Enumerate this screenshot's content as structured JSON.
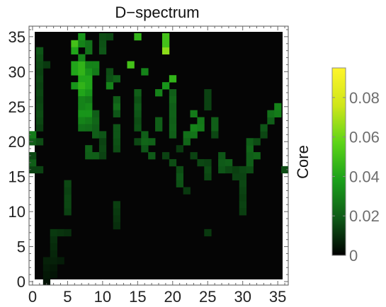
{
  "chart_data": {
    "type": "heatmap",
    "title": "D−spectrum",
    "xlabel": "",
    "ylabel": "",
    "xlim": [
      -0.5,
      36.5
    ],
    "ylim": [
      -0.5,
      36.5
    ],
    "x_ticks": [
      0,
      5,
      10,
      15,
      20,
      25,
      30,
      35
    ],
    "y_ticks": [
      0,
      5,
      10,
      15,
      20,
      25,
      30,
      35
    ],
    "grid": false,
    "background_color": "#050505",
    "colorbar": {
      "label": "Core",
      "min": 0,
      "max": 0.095,
      "ticks": [
        0,
        0.02,
        0.04,
        0.06,
        0.08
      ],
      "tick_labels": [
        "0",
        "0.02",
        "0.04",
        "0.06",
        "0.08"
      ],
      "colors": [
        "#000000",
        "#0f5a18",
        "#1aa01a",
        "#5cd418",
        "#cfe61a",
        "#fff52a"
      ]
    },
    "cells": [
      [
        2,
        0,
        0.004
      ],
      [
        2,
        1,
        0.005
      ],
      [
        3,
        1,
        0.004
      ],
      [
        2,
        2,
        0.006
      ],
      [
        3,
        2,
        0.005
      ],
      [
        2,
        3,
        0.007
      ],
      [
        3,
        3,
        0.007
      ],
      [
        4,
        3,
        0.006
      ],
      [
        3,
        4,
        0.008
      ],
      [
        3,
        5,
        0.009
      ],
      [
        3,
        6,
        0.01
      ],
      [
        3,
        7,
        0.012
      ],
      [
        4,
        7,
        0.011
      ],
      [
        5,
        7,
        0.01
      ],
      [
        5,
        10,
        0.014
      ],
      [
        5,
        11,
        0.015
      ],
      [
        5,
        12,
        0.015
      ],
      [
        5,
        13,
        0.014
      ],
      [
        5,
        14,
        0.015
      ],
      [
        12,
        8,
        0.01
      ],
      [
        12,
        9,
        0.011
      ],
      [
        12,
        10,
        0.012
      ],
      [
        12,
        11,
        0.013
      ],
      [
        25,
        7,
        0.012
      ],
      [
        0,
        16,
        0.014
      ],
      [
        0,
        17,
        0.02
      ],
      [
        0,
        18,
        0.015
      ],
      [
        0,
        20,
        0.02
      ],
      [
        0,
        21,
        0.028
      ],
      [
        1,
        20,
        0.016
      ],
      [
        1,
        16,
        0.014
      ],
      [
        1,
        22,
        0.013
      ],
      [
        1,
        23,
        0.015
      ],
      [
        1,
        24,
        0.016
      ],
      [
        1,
        25,
        0.015
      ],
      [
        1,
        26,
        0.014
      ],
      [
        1,
        27,
        0.015
      ],
      [
        1,
        28,
        0.014
      ],
      [
        1,
        29,
        0.015
      ],
      [
        1,
        30,
        0.014
      ],
      [
        1,
        31,
        0.015
      ],
      [
        1,
        32,
        0.016
      ],
      [
        1,
        33,
        0.018
      ],
      [
        2,
        31,
        0.012
      ],
      [
        6,
        28,
        0.035
      ],
      [
        6,
        30,
        0.04
      ],
      [
        6,
        31,
        0.04
      ],
      [
        6,
        34,
        0.05
      ],
      [
        6,
        33,
        0.04
      ],
      [
        7,
        29,
        0.04
      ],
      [
        7,
        28,
        0.045
      ],
      [
        7,
        27,
        0.04
      ],
      [
        7,
        30,
        0.045
      ],
      [
        7,
        31,
        0.045
      ],
      [
        7,
        32,
        0.03
      ],
      [
        7,
        35,
        0.035
      ],
      [
        7,
        34,
        0.03
      ],
      [
        8,
        27,
        0.035
      ],
      [
        8,
        28,
        0.04
      ],
      [
        8,
        29,
        0.04
      ],
      [
        8,
        30,
        0.035
      ],
      [
        8,
        31,
        0.03
      ],
      [
        8,
        33,
        0.025
      ],
      [
        8,
        34,
        0.025
      ],
      [
        9,
        31,
        0.03
      ],
      [
        9,
        30,
        0.028
      ],
      [
        7,
        26,
        0.03
      ],
      [
        8,
        26,
        0.028
      ],
      [
        7,
        25,
        0.03
      ],
      [
        8,
        25,
        0.032
      ],
      [
        7,
        24,
        0.035
      ],
      [
        8,
        24,
        0.035
      ],
      [
        7,
        23,
        0.03
      ],
      [
        8,
        23,
        0.028
      ],
      [
        7,
        22,
        0.025
      ],
      [
        8,
        22,
        0.024
      ],
      [
        9,
        21,
        0.02
      ],
      [
        10,
        21,
        0.018
      ],
      [
        9,
        22,
        0.02
      ],
      [
        9,
        23,
        0.022
      ],
      [
        9,
        24,
        0.02
      ],
      [
        10,
        33,
        0.018
      ],
      [
        10,
        34,
        0.017
      ],
      [
        10,
        35,
        0.016
      ],
      [
        11,
        35,
        0.015
      ],
      [
        11,
        30,
        0.016
      ],
      [
        11,
        29,
        0.017
      ],
      [
        12,
        29,
        0.02
      ],
      [
        11,
        28,
        0.03
      ],
      [
        12,
        25,
        0.024
      ],
      [
        12,
        26,
        0.02
      ],
      [
        12,
        24,
        0.018
      ],
      [
        8,
        18,
        0.02
      ],
      [
        8,
        19,
        0.021
      ],
      [
        9,
        18,
        0.02
      ],
      [
        10,
        20,
        0.014
      ],
      [
        10,
        19,
        0.015
      ],
      [
        10,
        18,
        0.014
      ],
      [
        12,
        19,
        0.016
      ],
      [
        12,
        20,
        0.017
      ],
      [
        12,
        21,
        0.018
      ],
      [
        12,
        22,
        0.018
      ],
      [
        15,
        22,
        0.017
      ],
      [
        15,
        23,
        0.016
      ],
      [
        15,
        24,
        0.018
      ],
      [
        15,
        25,
        0.019
      ],
      [
        15,
        26,
        0.017
      ],
      [
        15,
        27,
        0.02
      ],
      [
        15,
        20,
        0.015
      ],
      [
        16,
        21,
        0.02
      ],
      [
        16,
        20,
        0.022
      ],
      [
        16,
        19,
        0.018
      ],
      [
        17,
        20,
        0.021
      ],
      [
        17,
        18,
        0.019
      ],
      [
        15,
        35,
        0.045
      ],
      [
        16,
        30,
        0.03
      ],
      [
        14,
        31,
        0.05
      ],
      [
        19,
        35,
        0.05
      ],
      [
        19,
        33,
        0.065
      ],
      [
        19,
        34,
        0.05
      ],
      [
        18,
        27,
        0.03
      ],
      [
        19,
        28,
        0.035
      ],
      [
        20,
        29,
        0.045
      ],
      [
        20,
        27,
        0.02
      ],
      [
        20,
        26,
        0.022
      ],
      [
        20,
        25,
        0.02
      ],
      [
        20,
        24,
        0.021
      ],
      [
        20,
        23,
        0.02
      ],
      [
        20,
        22,
        0.021
      ],
      [
        20,
        21,
        0.02
      ],
      [
        18,
        23,
        0.02
      ],
      [
        18,
        22,
        0.02
      ],
      [
        19,
        18,
        0.014
      ],
      [
        20,
        17,
        0.016
      ],
      [
        21,
        16,
        0.016
      ],
      [
        21,
        15,
        0.018
      ],
      [
        21,
        14,
        0.017
      ],
      [
        22,
        13,
        0.012
      ],
      [
        21,
        19,
        0.012
      ],
      [
        22,
        21,
        0.025
      ],
      [
        23,
        21,
        0.026
      ],
      [
        23,
        22,
        0.03
      ],
      [
        24,
        22,
        0.028
      ],
      [
        24,
        23,
        0.027
      ],
      [
        23,
        24,
        0.028
      ],
      [
        22,
        20,
        0.022
      ],
      [
        23,
        18,
        0.014
      ],
      [
        24,
        17,
        0.015
      ],
      [
        25,
        15,
        0.015
      ],
      [
        25,
        16,
        0.016
      ],
      [
        25,
        17,
        0.014
      ],
      [
        25,
        25,
        0.014
      ],
      [
        25,
        26,
        0.014
      ],
      [
        25,
        27,
        0.014
      ],
      [
        26,
        22,
        0.02
      ],
      [
        26,
        23,
        0.02
      ],
      [
        26,
        21,
        0.015
      ],
      [
        27,
        16,
        0.018
      ],
      [
        27,
        17,
        0.019
      ],
      [
        27,
        18,
        0.018
      ],
      [
        28,
        17,
        0.02
      ],
      [
        28,
        16,
        0.015
      ],
      [
        29,
        15,
        0.014
      ],
      [
        29,
        16,
        0.013
      ],
      [
        30,
        16,
        0.015
      ],
      [
        30,
        15,
        0.014
      ],
      [
        30,
        14,
        0.015
      ],
      [
        30,
        13,
        0.014
      ],
      [
        30,
        12,
        0.013
      ],
      [
        30,
        11,
        0.014
      ],
      [
        30,
        10,
        0.013
      ],
      [
        31,
        16,
        0.016
      ],
      [
        31,
        17,
        0.02
      ],
      [
        31,
        18,
        0.02
      ],
      [
        31,
        19,
        0.022
      ],
      [
        31,
        20,
        0.02
      ],
      [
        32,
        18,
        0.022
      ],
      [
        32,
        20,
        0.016
      ],
      [
        33,
        21,
        0.015
      ],
      [
        33,
        22,
        0.018
      ],
      [
        34,
        23,
        0.02
      ],
      [
        34,
        24,
        0.025
      ],
      [
        35,
        25,
        0.03
      ],
      [
        35,
        24,
        0.028
      ],
      [
        36,
        16,
        0.016
      ]
    ]
  }
}
